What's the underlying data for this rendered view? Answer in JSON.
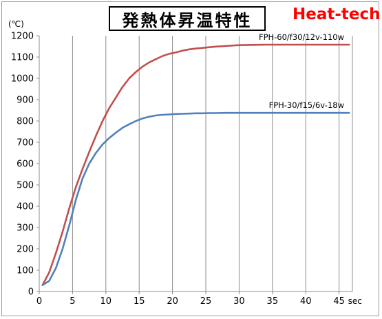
{
  "header": {
    "title": "発熱体昇温特性",
    "brand": "Heat-tech"
  },
  "chart_data": {
    "type": "line",
    "title": "発熱体昇温特性",
    "xlabel": "sec",
    "ylabel": "(℃)",
    "xlim": [
      0,
      47
    ],
    "ylim": [
      0,
      1200
    ],
    "x_ticks": [
      0,
      5,
      10,
      15,
      20,
      25,
      30,
      35,
      40,
      45
    ],
    "y_ticks": [
      0,
      100,
      200,
      300,
      400,
      500,
      600,
      700,
      800,
      900,
      1000,
      1100,
      1200
    ],
    "grid": "vertical",
    "series": [
      {
        "name": "FPH-60/f30/12v-110w",
        "color": "#c0504d",
        "x": [
          0.5,
          1.5,
          2.5,
          3.5,
          4.5,
          5.5,
          6.5,
          7.5,
          8.5,
          9.5,
          10.5,
          11.5,
          12.5,
          13.5,
          14.5,
          15.5,
          16.5,
          17.5,
          18.5,
          19.5,
          20.5,
          21.5,
          22.5,
          23.5,
          24.5,
          25.5,
          26.5,
          27.5,
          28.5,
          29.5,
          30.5,
          32,
          34,
          36,
          38,
          40,
          42,
          44,
          46.5
        ],
        "y": [
          30,
          90,
          180,
          280,
          390,
          490,
          575,
          655,
          730,
          800,
          860,
          910,
          960,
          1000,
          1030,
          1055,
          1075,
          1090,
          1105,
          1115,
          1122,
          1130,
          1136,
          1140,
          1143,
          1146,
          1149,
          1151,
          1153,
          1155,
          1156,
          1157,
          1158,
          1158,
          1158,
          1158,
          1158,
          1158,
          1158
        ]
      },
      {
        "name": "FPH-30/f15/6v-18w",
        "color": "#4f81bd",
        "x": [
          0.5,
          1.5,
          2.5,
          3.5,
          4.5,
          5.5,
          6.5,
          7.5,
          8.5,
          9.5,
          10.5,
          11.5,
          12.5,
          13.5,
          14.5,
          15.5,
          16.5,
          17.5,
          18.5,
          19.5,
          20.5,
          21.5,
          22.5,
          23.5,
          24.5,
          25.5,
          26.5,
          28,
          30,
          32,
          34,
          36,
          38,
          40,
          42,
          44,
          46.5
        ],
        "y": [
          30,
          50,
          110,
          200,
          310,
          430,
          530,
          600,
          650,
          690,
          720,
          745,
          768,
          785,
          800,
          812,
          820,
          826,
          829,
          831,
          833,
          834,
          835,
          836,
          836,
          837,
          837,
          838,
          838,
          838,
          838,
          838,
          838,
          838,
          838,
          838,
          838
        ]
      }
    ]
  }
}
